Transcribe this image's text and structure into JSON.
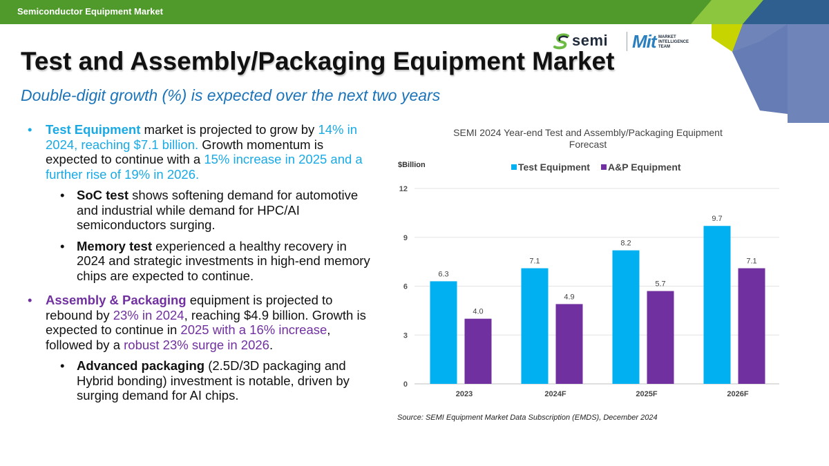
{
  "header": {
    "section_title": "Semiconductor Equipment Market"
  },
  "logos": {
    "semi_word": "semi",
    "mit_word": "Mit",
    "mit_sub": [
      "MARKET",
      "INTELLIGENCE",
      "TEAM"
    ]
  },
  "slide": {
    "title": "Test and Assembly/Packaging Equipment Market",
    "subtitle": "Double-digit growth (%) is expected over the next two years"
  },
  "bullets": {
    "test": {
      "lead": "Test Equipment",
      "t1": " market is projected to grow by ",
      "hl1": "14% in 2024, reaching $7.1 billion.",
      "t2": " Growth momentum is expected to continue with a ",
      "hl2": "15% increase in 2025 and a further rise of 19% in 2026.",
      "subs": [
        {
          "lead": "SoC test",
          "text": " shows softening demand for automotive and industrial while demand for HPC/AI semiconductors surging."
        },
        {
          "lead": "Memory test",
          "text": " experienced a healthy recovery in 2024 and strategic investments in high-end memory chips are expected to continue."
        }
      ]
    },
    "ap": {
      "lead": "Assembly & Packaging",
      "t1": " equipment is projected to rebound by ",
      "hl1": "23% in 2024",
      "t2": ", reaching $4.9 billion. Growth is expected to continue in ",
      "hl2": "2025 with a 16% increase",
      "t3": ", followed by a ",
      "hl3": "robust 23% surge in 2026",
      "t4": ".",
      "subs": [
        {
          "lead": "Advanced packaging",
          "text": " (2.5D/3D packaging and Hybrid bonding) investment is notable, driven by surging demand for AI chips."
        }
      ]
    }
  },
  "chart_data": {
    "type": "bar",
    "title": "SEMI 2024 Year-end Test and Assembly/Packaging Equipment Forecast",
    "ylabel": "$Billion",
    "categories": [
      "2023",
      "2024F",
      "2025F",
      "2026F"
    ],
    "series": [
      {
        "name": "Test Equipment",
        "values": [
          6.3,
          7.1,
          8.2,
          9.7
        ],
        "color": "#00b0f0"
      },
      {
        "name": "A&P Equipment",
        "values": [
          4.0,
          4.9,
          5.7,
          7.1
        ],
        "color": "#7030a0"
      }
    ],
    "value_labels": [
      [
        "6.3",
        "7.1",
        "8.2",
        "9.7"
      ],
      [
        "4.0",
        "4.9",
        "5.7",
        "7.1"
      ]
    ],
    "ylim": [
      0,
      12
    ],
    "yticks": [
      0,
      3,
      6,
      9,
      12
    ],
    "grid": true,
    "legend_position": "top"
  },
  "source": "Source: SEMI Equipment Market Data Subscription (EMDS), December 2024"
}
